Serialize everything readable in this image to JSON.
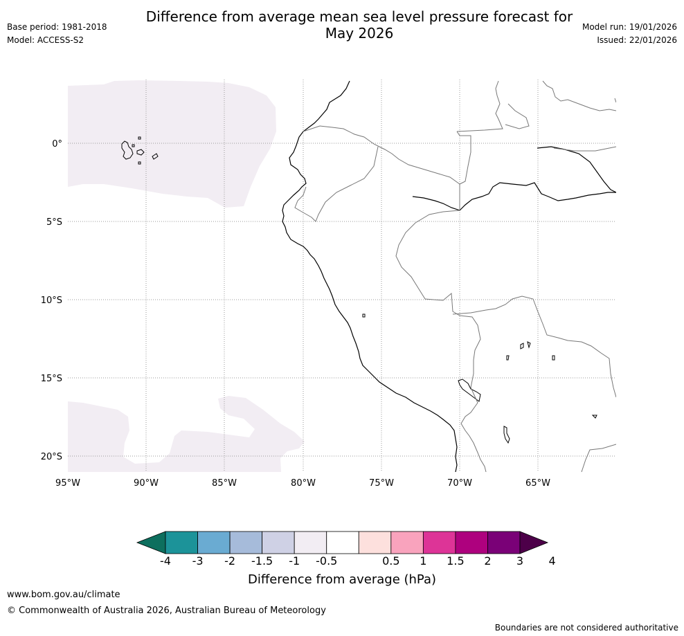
{
  "header": {
    "title_line1": "Difference from average mean sea level pressure forecast for",
    "title_line2": "May 2026",
    "base_period": "Base period: 1981-2018",
    "model": "Model: ACCESS-S2",
    "model_run": "Model run: 19/01/2026",
    "issued": "Issued: 22/01/2026"
  },
  "map": {
    "lat_labels": [
      "0°",
      "5°S",
      "10°S",
      "15°S",
      "20°S"
    ],
    "lon_labels": [
      "95°W",
      "90°W",
      "85°W",
      "80°W",
      "75°W",
      "70°W",
      "65°W"
    ],
    "anomaly_fill_color": "#f2edf3",
    "anomaly_category": "-0.5 to -1 hPa (light)"
  },
  "colorbar": {
    "title": "Difference from average (hPa)",
    "tick_labels": [
      "-4",
      "-3",
      "-2",
      "-1.5",
      "-1",
      "-0.5",
      "0.5",
      "1",
      "1.5",
      "2",
      "3",
      "4"
    ],
    "colors": [
      "#0d6f5e",
      "#1c9399",
      "#6aabd2",
      "#a6bbda",
      "#cfd1e5",
      "#f2edf3",
      "#ffffff",
      "#fde0dd",
      "#f9a3bd",
      "#dd3497",
      "#ae017e",
      "#7a0177",
      "#4d0049"
    ]
  },
  "footer": {
    "url": "www.bom.gov.au/climate",
    "copyright": "© Commonwealth of Australia 2026, Australian Bureau of Meteorology",
    "disclaimer": "Boundaries are not considered authoritative"
  }
}
